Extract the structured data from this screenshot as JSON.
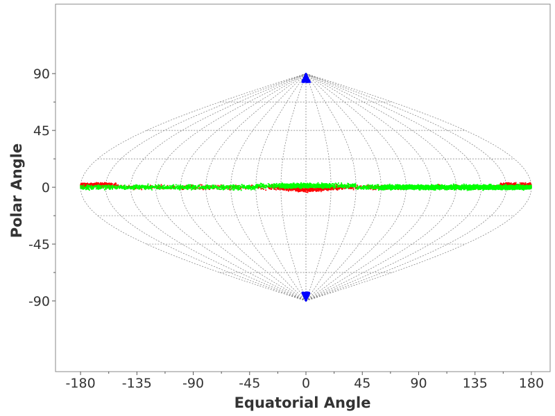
{
  "chart_data": {
    "type": "scatter",
    "projection": "sinusoidal",
    "title": "",
    "xlabel": "Equatorial Angle",
    "ylabel": "Polar Angle",
    "xlim": [
      -200,
      195
    ],
    "ylim": [
      -146,
      145
    ],
    "x_ticks": [
      -180,
      -135,
      -90,
      -45,
      0,
      45,
      90,
      135,
      180
    ],
    "x_tick_labels": [
      "-180",
      "-135",
      "-90",
      "-45",
      "0",
      "45",
      "90",
      "135",
      "180"
    ],
    "y_ticks": [
      -90,
      -45,
      0,
      45,
      90
    ],
    "y_tick_labels": [
      "-90",
      "-45",
      "0",
      "45",
      "90"
    ],
    "graticule": {
      "meridian_step": 20,
      "parallel_step": 22.5,
      "color": "#777777",
      "dashed": true
    },
    "grid": false,
    "legend": "none",
    "series": [
      {
        "color": "#ff0000",
        "description": "band around the equator, thickest at the projection edges and near 0",
        "equatorial_range": [
          -180,
          180
        ],
        "polar_range": [
          -7,
          6
        ]
      },
      {
        "color": "#00ff00",
        "description": "equatorial band, densest between 60 and 180",
        "equatorial_range": [
          -180,
          180
        ],
        "polar_range": [
          -5,
          5
        ]
      },
      {
        "color": "#0000ff",
        "description": "caps at both poles",
        "equatorial_range": [
          -30,
          30
        ],
        "polar_range_north": [
          83,
          90
        ],
        "polar_range_south": [
          -90,
          -83
        ]
      }
    ]
  }
}
